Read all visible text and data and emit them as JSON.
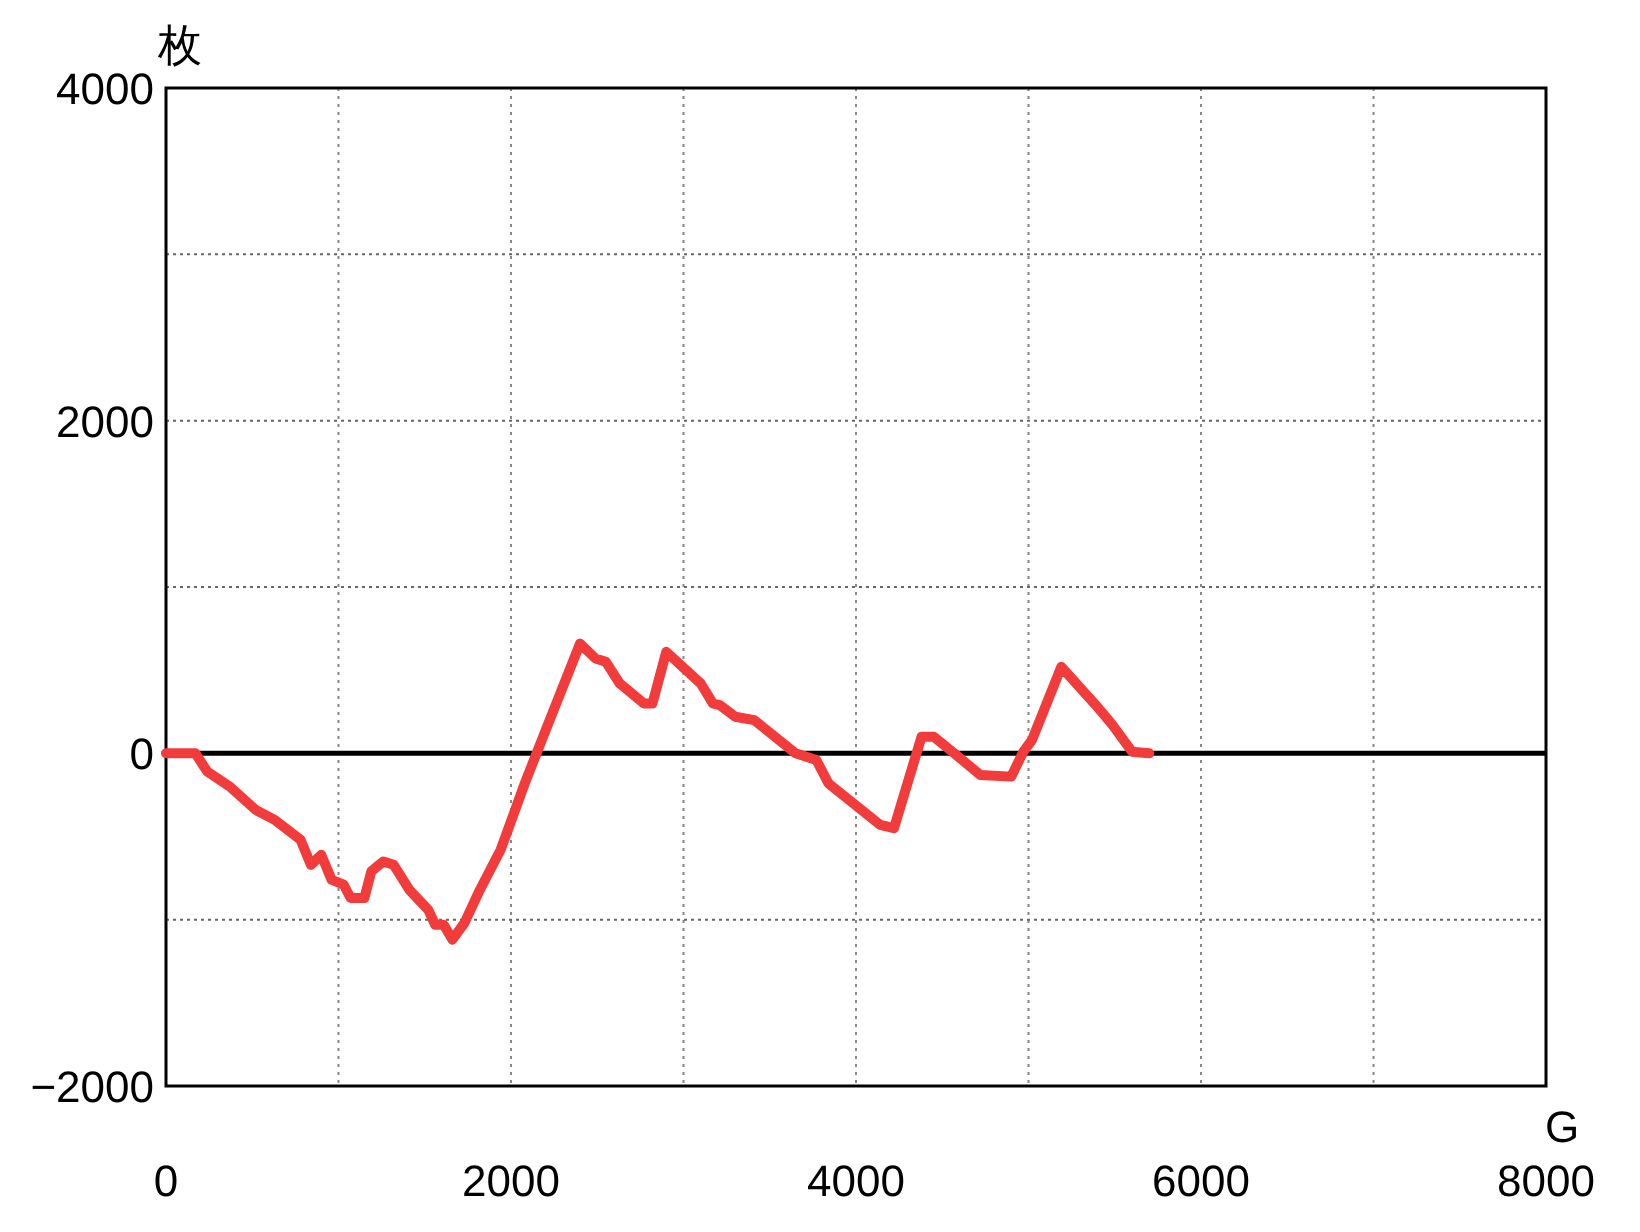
{
  "chart_data": {
    "type": "line",
    "xlabel": "G",
    "ylabel": "枚",
    "x": [
      0,
      170,
      240,
      370,
      520,
      630,
      780,
      840,
      900,
      960,
      1030,
      1070,
      1150,
      1190,
      1260,
      1320,
      1410,
      1520,
      1560,
      1610,
      1660,
      1730,
      1820,
      1940,
      2080,
      2190,
      2400,
      2490,
      2550,
      2630,
      2770,
      2820,
      2900,
      3100,
      3170,
      3210,
      3300,
      3410,
      3650,
      3770,
      3840,
      4140,
      4220,
      4380,
      4450,
      4570,
      4720,
      4900,
      4970,
      5020,
      5190,
      5390,
      5480,
      5600,
      5700
    ],
    "series": [
      {
        "color": "#f23c3c",
        "values": [
          0,
          0,
          -110,
          -200,
          -340,
          -400,
          -520,
          -670,
          -610,
          -760,
          -790,
          -870,
          -870,
          -710,
          -650,
          -670,
          -820,
          -940,
          -1030,
          -1030,
          -1120,
          -1020,
          -820,
          -580,
          -180,
          110,
          660,
          570,
          550,
          420,
          300,
          300,
          610,
          420,
          300,
          290,
          220,
          200,
          0,
          -40,
          -180,
          -430,
          -450,
          100,
          100,
          0,
          -130,
          -140,
          10,
          80,
          520,
          290,
          180,
          10,
          0
        ]
      }
    ],
    "xlim": [
      0,
      8000
    ],
    "ylim": [
      -2000,
      4000
    ],
    "xticks": [
      0,
      {
        "value": 1000,
        "label": null
      },
      2000,
      {
        "value": 3000,
        "label": null
      },
      4000,
      {
        "value": 5000,
        "label": null
      },
      6000,
      {
        "value": 7000,
        "label": null
      },
      8000
    ],
    "yticks": [
      -2000,
      {
        "value": -1000,
        "label": null
      },
      0,
      {
        "value": 1000,
        "label": null
      },
      2000,
      {
        "value": 3000,
        "label": null
      },
      4000
    ],
    "grid": true,
    "marker": "none",
    "line_style": "solid",
    "ref_lines": [
      {
        "axis": "y",
        "value": 0,
        "color": "#000000",
        "line_style": "solid"
      }
    ]
  }
}
